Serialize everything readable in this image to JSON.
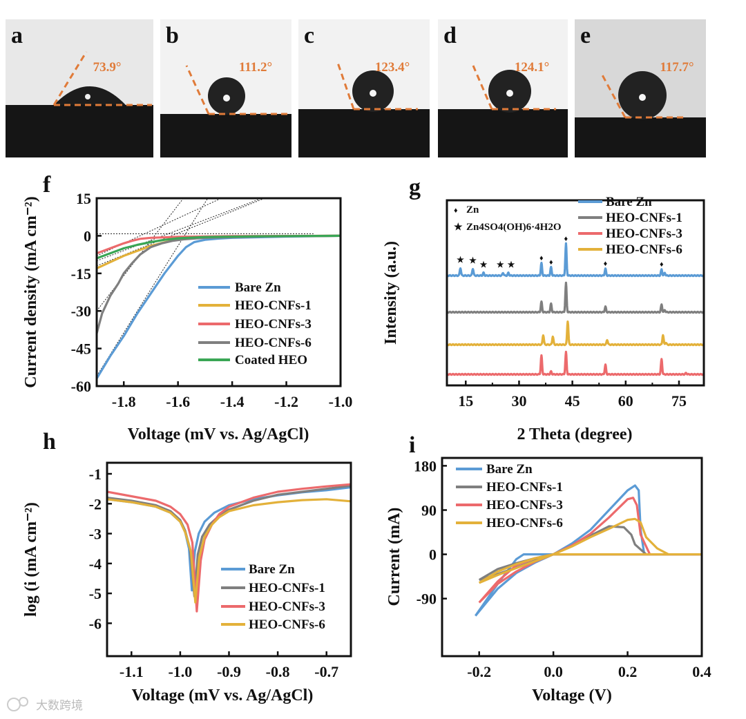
{
  "photos": [
    {
      "label": "a",
      "angle": "73.9°"
    },
    {
      "label": "b",
      "angle": "111.2°"
    },
    {
      "label": "c",
      "angle": "123.4°"
    },
    {
      "label": "d",
      "angle": "124.1°"
    },
    {
      "label": "e",
      "angle": "117.7°"
    }
  ],
  "colors": {
    "bare_zn": "#5b9bd5",
    "heo1": "#e3b13a",
    "heo3": "#ec6a6c",
    "heo6": "#7f7f7f",
    "coated": "#3aa655",
    "angle": "#e07b39",
    "fit": "#222222"
  },
  "watermark": "大数跨境",
  "chart_data": [
    {
      "panel": "f",
      "type": "line",
      "xlabel": "Voltage (mV vs. Ag/AgCl)",
      "ylabel": "Current density (mA cm⁻²)",
      "xlim": [
        -1.9,
        -1.0
      ],
      "ylim": [
        -60,
        15
      ],
      "xticks": [
        -1.8,
        -1.6,
        -1.4,
        -1.2,
        -1.0
      ],
      "xtick_labels": [
        "-1.8",
        "-1.6",
        "-1.4",
        "-1.2",
        "-1.0"
      ],
      "yticks": [
        15,
        0,
        -15,
        -30,
        -45,
        -60
      ],
      "ytick_labels": [
        "15",
        "0",
        "-15",
        "-30",
        "-45",
        "-60"
      ],
      "legend_position": "lower-right",
      "series": [
        {
          "name": "Bare Zn",
          "color": "#5b9bd5",
          "x": [
            -1.9,
            -1.85,
            -1.8,
            -1.75,
            -1.7,
            -1.65,
            -1.6,
            -1.57,
            -1.54,
            -1.5,
            -1.45,
            -1.4,
            -1.2,
            -1.0
          ],
          "y": [
            -57,
            -48,
            -40,
            -31,
            -23,
            -15,
            -8,
            -4.5,
            -2.5,
            -1.6,
            -1.1,
            -0.8,
            -0.3,
            0
          ]
        },
        {
          "name": "HEO-CNFs-1",
          "color": "#e3b13a",
          "x": [
            -1.9,
            -1.85,
            -1.8,
            -1.75,
            -1.7,
            -1.65,
            -1.6,
            -1.5,
            -1.3,
            -1.0
          ],
          "y": [
            -13,
            -10.5,
            -8,
            -6,
            -4,
            -2.6,
            -1.5,
            -0.6,
            -0.2,
            0
          ]
        },
        {
          "name": "HEO-CNFs-3",
          "color": "#ec6a6c",
          "x": [
            -1.9,
            -1.85,
            -1.8,
            -1.77,
            -1.74,
            -1.7,
            -1.6,
            -1.4,
            -1.0
          ],
          "y": [
            -7,
            -5,
            -3,
            -2,
            -1.2,
            -0.8,
            -0.4,
            -0.15,
            0
          ]
        },
        {
          "name": "HEO-CNFs-6",
          "color": "#7f7f7f",
          "x": [
            -1.9,
            -1.88,
            -1.85,
            -1.82,
            -1.8,
            -1.77,
            -1.74,
            -1.7,
            -1.66,
            -1.62,
            -1.58,
            -1.5,
            -1.3,
            -1.0
          ],
          "y": [
            -39,
            -31,
            -24,
            -19,
            -15,
            -11,
            -7.5,
            -4.5,
            -3,
            -2,
            -1.4,
            -0.8,
            -0.3,
            0
          ]
        },
        {
          "name": "Coated HEO",
          "color": "#3aa655",
          "x": [
            -1.9,
            -1.85,
            -1.8,
            -1.75,
            -1.7,
            -1.65,
            -1.6,
            -1.5,
            -1.3,
            -1.0
          ],
          "y": [
            -9,
            -7,
            -5,
            -3.6,
            -2.5,
            -1.6,
            -1,
            -0.5,
            -0.2,
            0
          ]
        }
      ],
      "fit_lines": [
        {
          "x": [
            -1.9,
            -1.1
          ],
          "y": [
            0.8,
            0.8
          ]
        },
        {
          "x": [
            -1.9,
            -1.49
          ],
          "y": [
            -56,
            15
          ]
        },
        {
          "x": [
            -1.9,
            -1.58
          ],
          "y": [
            -30,
            15
          ]
        },
        {
          "x": [
            -1.9,
            -1.44
          ],
          "y": [
            -8,
            15
          ]
        },
        {
          "x": [
            -1.9,
            -1.28
          ],
          "y": [
            -12,
            15
          ]
        },
        {
          "x": [
            -1.9,
            -1.29
          ],
          "y": [
            -10,
            15
          ]
        }
      ]
    },
    {
      "panel": "g",
      "type": "line",
      "xlabel": "2 Theta (degree)",
      "ylabel": "Intensity (a.u.)",
      "xlim": [
        9.7,
        82
      ],
      "ylim": [
        0,
        268
      ],
      "xticks": [
        15,
        30,
        45,
        60,
        75
      ],
      "xtick_labels": [
        "15",
        "30",
        "45",
        "60",
        "75"
      ],
      "minor_xticks": [
        22.5,
        37.5,
        52.5,
        67.5
      ],
      "legend_position": "top-right",
      "markers": [
        {
          "symbol": "♦",
          "label": "Zn",
          "color": "#333333",
          "positions": [
            36.3,
            39.0,
            43.2,
            54.3,
            70.1
          ]
        },
        {
          "symbol": "★",
          "label": "Zn4SO4(OH)6·4H2O",
          "color": "#b8912a",
          "positions": [
            13.5,
            17.0,
            20.0,
            25.5,
            27.0
          ]
        }
      ],
      "series": [
        {
          "name": "Bare Zn",
          "color": "#5b9bd5",
          "baseline": 159,
          "peaks": [
            [
              13.5,
              11
            ],
            [
              17,
              10
            ],
            [
              20,
              4
            ],
            [
              25.5,
              4
            ],
            [
              27,
              4
            ],
            [
              36.3,
              18
            ],
            [
              39,
              12
            ],
            [
              43.2,
              46
            ],
            [
              54.3,
              10
            ],
            [
              70.1,
              9
            ],
            [
              71,
              4
            ]
          ]
        },
        {
          "name": "HEO-CNFs-1",
          "color": "#7f7f7f",
          "baseline": 106,
          "peaks": [
            [
              36.3,
              15
            ],
            [
              39,
              12
            ],
            [
              43.2,
              42
            ],
            [
              54.3,
              8
            ],
            [
              70.1,
              11
            ],
            [
              71,
              3
            ]
          ]
        },
        {
          "name": "HEO-CNFs-6",
          "color": "#e3b13a",
          "baseline": 59,
          "peaks": [
            [
              36.8,
              14
            ],
            [
              39.5,
              12
            ],
            [
              43.7,
              34
            ],
            [
              54.8,
              7
            ],
            [
              70.5,
              14
            ],
            [
              71.3,
              3
            ]
          ]
        },
        {
          "name": "HEO-CNFs-3",
          "color": "#ec6a6c",
          "baseline": 16,
          "peaks": [
            [
              36.3,
              27
            ],
            [
              39,
              4
            ],
            [
              43.2,
              32
            ],
            [
              54.3,
              14
            ],
            [
              70.1,
              22
            ],
            [
              77,
              2
            ]
          ]
        }
      ],
      "legend_order": [
        "Bare Zn",
        "HEO-CNFs-1",
        "HEO-CNFs-3",
        "HEO-CNFs-6"
      ]
    },
    {
      "panel": "h",
      "type": "line",
      "xlabel": "Voltage (mV vs. Ag/AgCl)",
      "ylabel": "log (i (mA cm⁻²)",
      "xlim": [
        -1.15,
        -0.65
      ],
      "ylim": [
        -7.1,
        -0.63
      ],
      "xticks": [
        -1.1,
        -1.0,
        -0.9,
        -0.8,
        -0.7
      ],
      "xtick_labels": [
        "-1.1",
        "-1.0",
        "-0.9",
        "-0.8",
        "-0.7"
      ],
      "yticks": [
        -1,
        -2,
        -3,
        -4,
        -5,
        -6
      ],
      "ytick_labels": [
        "-1",
        "-2",
        "-3",
        "-4",
        "-5",
        "-6"
      ],
      "legend_position": "lower-right",
      "series": [
        {
          "name": "Bare Zn",
          "color": "#5b9bd5",
          "x": [
            -1.15,
            -1.1,
            -1.05,
            -1.02,
            -1.0,
            -0.99,
            -0.982,
            -0.976,
            -0.97,
            -0.962,
            -0.95,
            -0.93,
            -0.9,
            -0.85,
            -0.8,
            -0.75,
            -0.7,
            -0.65
          ],
          "y": [
            -1.85,
            -1.95,
            -2.1,
            -2.3,
            -2.6,
            -2.95,
            -3.5,
            -4.9,
            -3.6,
            -3.0,
            -2.6,
            -2.3,
            -2.05,
            -1.85,
            -1.72,
            -1.62,
            -1.55,
            -1.45
          ]
        },
        {
          "name": "HEO-CNFs-1",
          "color": "#7f7f7f",
          "x": [
            -1.15,
            -1.1,
            -1.05,
            -1.02,
            -1.0,
            -0.99,
            -0.98,
            -0.971,
            -0.964,
            -0.955,
            -0.94,
            -0.92,
            -0.9,
            -0.85,
            -0.8,
            -0.75,
            -0.7,
            -0.65
          ],
          "y": [
            -1.8,
            -1.9,
            -2.05,
            -2.25,
            -2.55,
            -2.9,
            -3.5,
            -5.1,
            -3.7,
            -3.1,
            -2.7,
            -2.4,
            -2.2,
            -1.9,
            -1.7,
            -1.6,
            -1.5,
            -1.4
          ]
        },
        {
          "name": "HEO-CNFs-3",
          "color": "#ec6a6c",
          "x": [
            -1.15,
            -1.1,
            -1.05,
            -1.02,
            -1.0,
            -0.985,
            -0.975,
            -0.966,
            -0.958,
            -0.95,
            -0.935,
            -0.92,
            -0.9,
            -0.85,
            -0.8,
            -0.75,
            -0.7,
            -0.65
          ],
          "y": [
            -1.6,
            -1.75,
            -1.9,
            -2.1,
            -2.35,
            -2.7,
            -3.3,
            -5.6,
            -3.9,
            -3.2,
            -2.7,
            -2.35,
            -2.1,
            -1.8,
            -1.6,
            -1.5,
            -1.42,
            -1.35
          ]
        },
        {
          "name": "HEO-CNFs-6",
          "color": "#e3b13a",
          "x": [
            -1.15,
            -1.1,
            -1.05,
            -1.02,
            -1.0,
            -0.99,
            -0.978,
            -0.969,
            -0.961,
            -0.95,
            -0.935,
            -0.92,
            -0.9,
            -0.85,
            -0.8,
            -0.75,
            -0.7,
            -0.65
          ],
          "y": [
            -1.85,
            -1.95,
            -2.1,
            -2.3,
            -2.6,
            -2.95,
            -3.6,
            -5.3,
            -3.8,
            -3.1,
            -2.7,
            -2.45,
            -2.25,
            -2.05,
            -1.95,
            -1.88,
            -1.85,
            -1.92
          ]
        }
      ]
    },
    {
      "panel": "i",
      "type": "line",
      "xlabel": "Voltage (V)",
      "ylabel": "Current (mA)",
      "xlim": [
        -0.3,
        0.4
      ],
      "ylim": [
        -207,
        196
      ],
      "xticks": [
        -0.2,
        0.0,
        0.2,
        0.4
      ],
      "xtick_labels": [
        "-0.2",
        "0.0",
        "0.2",
        "0.4"
      ],
      "yticks": [
        180,
        90,
        0,
        -90
      ],
      "ytick_labels": [
        "180",
        "90",
        "0",
        "-90"
      ],
      "legend_position": "top-left",
      "series": [
        {
          "name": "Bare Zn",
          "color": "#5b9bd5",
          "x": [
            -0.21,
            -0.15,
            -0.1,
            -0.05,
            0,
            0.05,
            0.1,
            0.15,
            0.2,
            0.22,
            0.23,
            0.235,
            0.245,
            0.3,
            0.4,
            0.2,
            0,
            -0.08,
            -0.1,
            -0.15,
            -0.21
          ],
          "y": [
            -125,
            -70,
            -38,
            -17,
            0,
            22,
            50,
            90,
            130,
            140,
            130,
            50,
            0,
            0,
            0,
            0,
            0,
            0,
            -10,
            -60,
            -125
          ]
        },
        {
          "name": "HEO-CNFs-1",
          "color": "#7f7f7f",
          "x": [
            -0.2,
            -0.15,
            -0.1,
            -0.05,
            0,
            0.05,
            0.1,
            0.15,
            0.19,
            0.21,
            0.22,
            0.25,
            0.4,
            0.1,
            0,
            -0.05,
            -0.1,
            -0.15,
            -0.2
          ],
          "y": [
            -52,
            -40,
            -27,
            -13,
            0,
            18,
            38,
            57,
            55,
            40,
            20,
            0,
            0,
            0,
            0,
            -8,
            -18,
            -30,
            -52
          ]
        },
        {
          "name": "HEO-CNFs-3",
          "color": "#ec6a6c",
          "x": [
            -0.2,
            -0.15,
            -0.1,
            -0.05,
            0,
            0.05,
            0.1,
            0.15,
            0.2,
            0.215,
            0.225,
            0.235,
            0.26,
            0.4,
            0.2,
            0,
            -0.05,
            -0.1,
            -0.15,
            -0.2
          ],
          "y": [
            -98,
            -60,
            -35,
            -15,
            0,
            18,
            42,
            75,
            112,
            115,
            100,
            40,
            0,
            0,
            0,
            0,
            -8,
            -22,
            -55,
            -98
          ]
        },
        {
          "name": "HEO-CNFs-6",
          "color": "#e3b13a",
          "x": [
            -0.2,
            -0.15,
            -0.1,
            -0.05,
            0,
            0.05,
            0.1,
            0.15,
            0.2,
            0.22,
            0.235,
            0.25,
            0.28,
            0.31,
            0.4,
            0.1,
            0,
            -0.05,
            -0.1,
            -0.15,
            -0.2
          ],
          "y": [
            -58,
            -42,
            -28,
            -14,
            0,
            16,
            35,
            52,
            70,
            72,
            65,
            35,
            12,
            0,
            0,
            0,
            0,
            -8,
            -20,
            -35,
            -58
          ]
        }
      ]
    }
  ]
}
